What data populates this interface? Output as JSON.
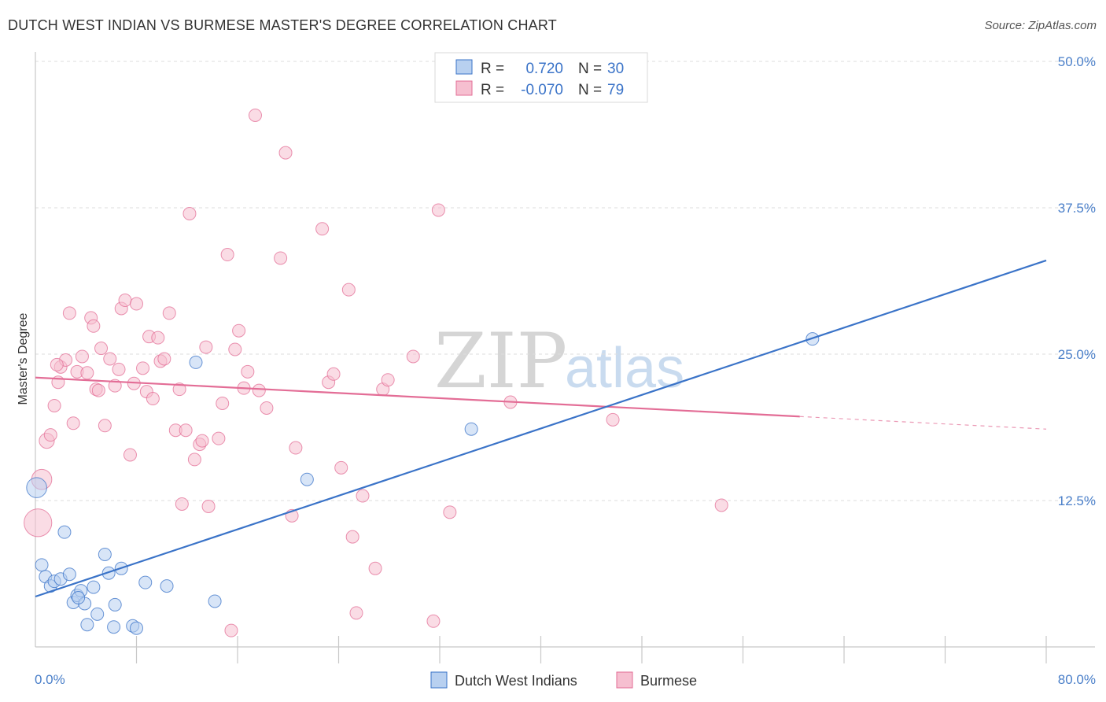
{
  "title": "DUTCH WEST INDIAN VS BURMESE MASTER'S DEGREE CORRELATION CHART",
  "source": "Source: ZipAtlas.com",
  "watermark": {
    "zip": "ZIP",
    "atlas": "atlas"
  },
  "colors": {
    "blue": "#3a73c8",
    "blue_fill": "#b8d0f0",
    "pink": "#e36d96",
    "pink_fill": "#f6bfd0",
    "grid": "#dddddd",
    "tick_text": "#4a7fc9"
  },
  "legend": {
    "rows": [
      {
        "r_label": "R =",
        "r_value": "0.720",
        "n_label": "N =",
        "n_value": "30"
      },
      {
        "r_label": "R =",
        "r_value": "-0.070",
        "n_label": "N =",
        "n_value": "79"
      }
    ]
  },
  "chart_data": {
    "type": "scatter",
    "title": "DUTCH WEST INDIAN VS BURMESE MASTER'S DEGREE CORRELATION CHART",
    "xlabel": "",
    "ylabel": "Master's Degree",
    "xlim": [
      0,
      80
    ],
    "ylim": [
      0,
      50
    ],
    "x_tick_labels": [
      "0.0%",
      "80.0%"
    ],
    "y_ticks": [
      12.5,
      25.0,
      37.5,
      50.0
    ],
    "y_tick_labels": [
      "12.5%",
      "25.0%",
      "37.5%",
      "50.0%"
    ],
    "grid": true,
    "series": [
      {
        "name": "Dutch West Indians",
        "r": 0.72,
        "n": 30,
        "trend": {
          "x0": 0,
          "y0": 4.3,
          "x1": 80,
          "y1": 33.0,
          "solid_until": 80
        },
        "points": [
          [
            0.1,
            13.6,
            1.6
          ],
          [
            0.5,
            7.0,
            1
          ],
          [
            0.8,
            6.0,
            1
          ],
          [
            1.2,
            5.2,
            1
          ],
          [
            1.5,
            5.6,
            1
          ],
          [
            2.0,
            5.8,
            1
          ],
          [
            2.3,
            9.8,
            1
          ],
          [
            2.7,
            6.2,
            1
          ],
          [
            3.0,
            3.8,
            1
          ],
          [
            3.3,
            4.4,
            1
          ],
          [
            3.6,
            4.8,
            1
          ],
          [
            3.9,
            3.7,
            1
          ],
          [
            4.1,
            1.9,
            1
          ],
          [
            4.6,
            5.1,
            1
          ],
          [
            4.9,
            2.8,
            1
          ],
          [
            5.5,
            7.9,
            1
          ],
          [
            5.8,
            6.3,
            1
          ],
          [
            6.2,
            1.7,
            1
          ],
          [
            6.3,
            3.6,
            1
          ],
          [
            6.8,
            6.7,
            1
          ],
          [
            7.7,
            1.8,
            1
          ],
          [
            8.0,
            1.6,
            1
          ],
          [
            8.7,
            5.5,
            1
          ],
          [
            10.4,
            5.2,
            1
          ],
          [
            12.7,
            24.3,
            1
          ],
          [
            14.2,
            3.9,
            1
          ],
          [
            21.5,
            14.3,
            1
          ],
          [
            34.5,
            18.6,
            1
          ],
          [
            61.5,
            26.3,
            1
          ],
          [
            3.4,
            4.2,
            1
          ]
        ]
      },
      {
        "name": "Burmese",
        "r": -0.07,
        "n": 79,
        "trend": {
          "x0": 0,
          "y0": 23.0,
          "x1": 80,
          "y1": 18.6,
          "solid_until": 60.5
        },
        "points": [
          [
            0.2,
            10.6,
            2.2
          ],
          [
            0.5,
            14.3,
            1.6
          ],
          [
            0.9,
            17.6,
            1.2
          ],
          [
            1.2,
            18.1,
            1
          ],
          [
            1.5,
            20.6,
            1
          ],
          [
            1.8,
            22.6,
            1
          ],
          [
            2.0,
            23.9,
            1
          ],
          [
            2.4,
            24.5,
            1
          ],
          [
            2.7,
            28.5,
            1
          ],
          [
            3.0,
            19.1,
            1
          ],
          [
            3.3,
            23.5,
            1
          ],
          [
            3.7,
            24.8,
            1
          ],
          [
            4.1,
            23.4,
            1
          ],
          [
            4.4,
            28.1,
            1
          ],
          [
            4.6,
            27.4,
            1
          ],
          [
            4.8,
            22.0,
            1
          ],
          [
            5.2,
            25.5,
            1
          ],
          [
            5.5,
            18.9,
            1
          ],
          [
            5.9,
            24.6,
            1
          ],
          [
            6.3,
            22.3,
            1
          ],
          [
            6.6,
            23.7,
            1
          ],
          [
            6.8,
            28.9,
            1
          ],
          [
            7.1,
            29.6,
            1
          ],
          [
            7.5,
            16.4,
            1
          ],
          [
            7.8,
            22.5,
            1
          ],
          [
            8.0,
            29.3,
            1
          ],
          [
            8.5,
            23.8,
            1
          ],
          [
            8.8,
            21.8,
            1
          ],
          [
            9.0,
            26.5,
            1
          ],
          [
            9.3,
            21.2,
            1
          ],
          [
            9.7,
            26.4,
            1
          ],
          [
            9.9,
            24.4,
            1
          ],
          [
            10.2,
            24.6,
            1
          ],
          [
            10.6,
            28.5,
            1
          ],
          [
            11.1,
            18.5,
            1
          ],
          [
            11.4,
            22.0,
            1
          ],
          [
            11.6,
            12.2,
            1
          ],
          [
            11.9,
            18.5,
            1
          ],
          [
            12.2,
            37.0,
            1
          ],
          [
            12.6,
            16.0,
            1
          ],
          [
            13.0,
            17.3,
            1
          ],
          [
            13.2,
            17.6,
            1
          ],
          [
            13.5,
            25.6,
            1
          ],
          [
            13.7,
            12.0,
            1
          ],
          [
            14.5,
            17.8,
            1
          ],
          [
            14.8,
            20.8,
            1
          ],
          [
            15.2,
            33.5,
            1
          ],
          [
            15.5,
            1.4,
            1
          ],
          [
            15.8,
            25.4,
            1
          ],
          [
            16.1,
            27.0,
            1
          ],
          [
            16.5,
            22.1,
            1
          ],
          [
            16.8,
            23.5,
            1
          ],
          [
            17.4,
            45.4,
            1
          ],
          [
            17.7,
            21.9,
            1
          ],
          [
            18.3,
            20.4,
            1
          ],
          [
            19.4,
            33.2,
            1
          ],
          [
            19.8,
            42.2,
            1
          ],
          [
            20.3,
            11.2,
            1
          ],
          [
            20.6,
            17.0,
            1
          ],
          [
            22.7,
            35.7,
            1
          ],
          [
            23.2,
            22.6,
            1
          ],
          [
            23.6,
            23.3,
            1
          ],
          [
            24.2,
            15.3,
            1
          ],
          [
            24.8,
            30.5,
            1
          ],
          [
            25.1,
            9.4,
            1
          ],
          [
            25.4,
            2.9,
            1
          ],
          [
            25.9,
            12.9,
            1
          ],
          [
            26.9,
            6.7,
            1
          ],
          [
            27.5,
            22.0,
            1
          ],
          [
            27.9,
            22.8,
            1
          ],
          [
            29.9,
            24.8,
            1
          ],
          [
            31.5,
            2.2,
            1
          ],
          [
            31.9,
            37.3,
            1
          ],
          [
            32.8,
            11.5,
            1
          ],
          [
            37.6,
            20.9,
            1
          ],
          [
            45.7,
            19.4,
            1
          ],
          [
            54.3,
            12.1,
            1
          ],
          [
            1.7,
            24.1,
            1
          ],
          [
            5.0,
            21.9,
            1
          ]
        ]
      }
    ]
  }
}
